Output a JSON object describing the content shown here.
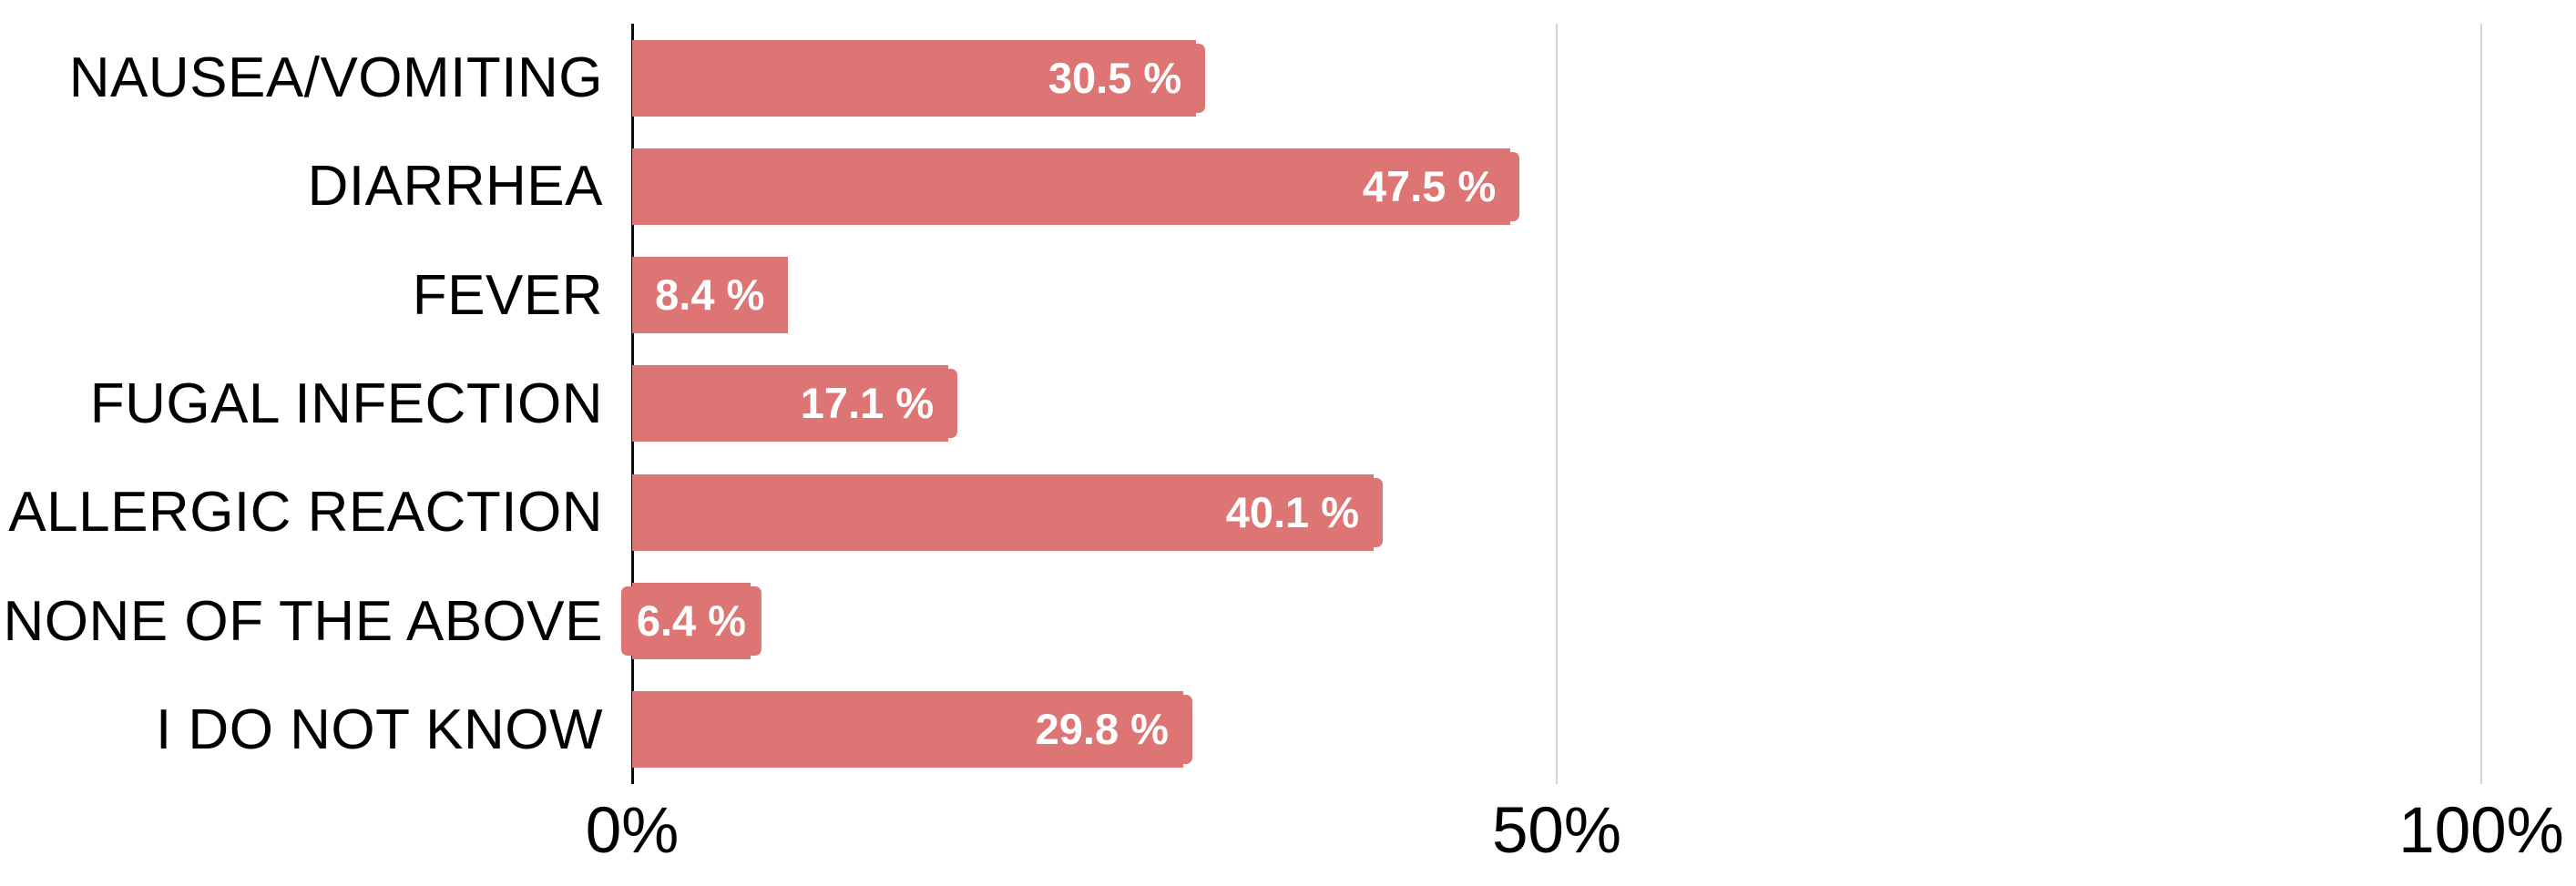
{
  "chart_data": {
    "type": "bar",
    "orientation": "horizontal",
    "title": "",
    "xlabel": "",
    "ylabel": "",
    "categories": [
      "NAUSEA/VOMITING",
      "DIARRHEA",
      "FEVER",
      "FUGAL INFECTION",
      "ALLERGIC REACTION",
      "NONE OF THE ABOVE",
      "I DO NOT KNOW"
    ],
    "values": [
      30.5,
      47.5,
      8.4,
      17.1,
      40.1,
      6.4,
      29.8
    ],
    "value_labels": [
      "30.5 %",
      "47.5 %",
      "8.4 %",
      "17.1 %",
      "40.1 %",
      "6.4 %",
      "29.8 %"
    ],
    "xlim": [
      0,
      100
    ],
    "x_ticks": [
      {
        "label": "0%",
        "value": 0
      },
      {
        "label": "50%",
        "value": 50
      },
      {
        "label": "100%",
        "value": 100
      }
    ],
    "grid": true,
    "legend": false,
    "bar_color": "#dd7575",
    "value_label_color": "#ffffff",
    "axis_color": "#0a0a0a",
    "gridline_color": "#d4d4d4",
    "text_color": "#000000"
  }
}
